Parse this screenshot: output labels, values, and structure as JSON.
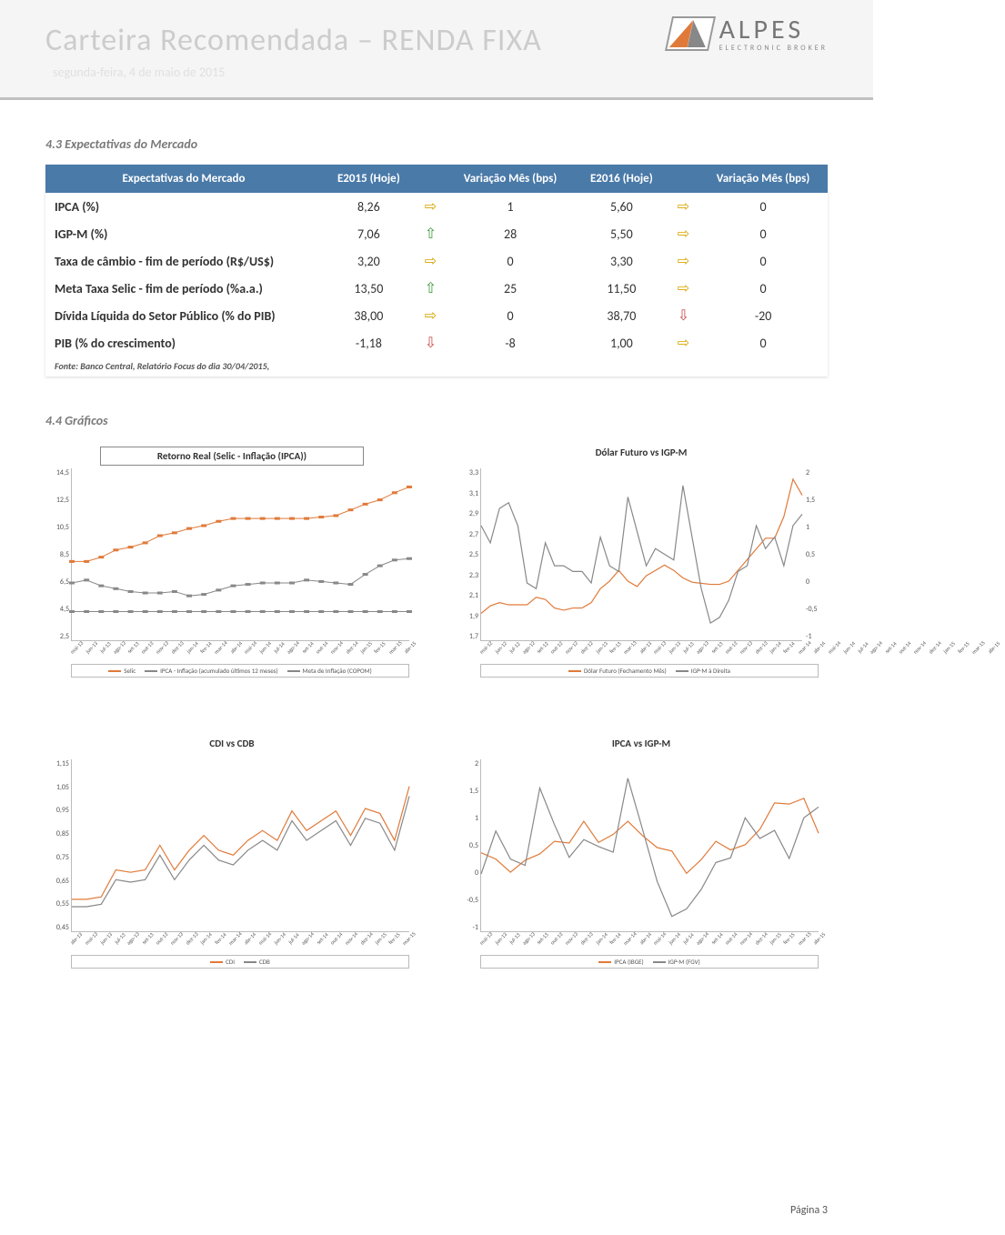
{
  "header": {
    "title": "Carteira Recomendada – RENDA FIXA",
    "date": "segunda-feira, 4 de maio de 2015",
    "logo_text": "ALPES",
    "logo_sub": "ELECTRONIC BROKER"
  },
  "section_43": {
    "title": "4.3 Expectativas do Mercado",
    "table": {
      "columns": [
        "Expectativas do Mercado",
        "E2015 (Hoje)",
        "",
        "Variação Mês (bps)",
        "E2016 (Hoje)",
        "",
        "Variação Mês (bps)"
      ],
      "rows": [
        {
          "label": "IPCA (%)",
          "e2015": "8,26",
          "a1": "right",
          "v1": "1",
          "e2016": "5,60",
          "a2": "right",
          "v2": "0"
        },
        {
          "label": "IGP-M (%)",
          "e2015": "7,06",
          "a1": "up",
          "v1": "28",
          "e2016": "5,50",
          "a2": "right",
          "v2": "0"
        },
        {
          "label": "Taxa de câmbio - fim de período (R$/US$)",
          "e2015": "3,20",
          "a1": "right",
          "v1": "0",
          "e2016": "3,30",
          "a2": "right",
          "v2": "0"
        },
        {
          "label": "Meta Taxa Selic - fim de período (%a.a.)",
          "e2015": "13,50",
          "a1": "up",
          "v1": "25",
          "e2016": "11,50",
          "a2": "right",
          "v2": "0"
        },
        {
          "label": "Dívida Líquida do Setor Público (% do PIB)",
          "e2015": "38,00",
          "a1": "right",
          "v1": "0",
          "e2016": "38,70",
          "a2": "down",
          "v2": "-20"
        },
        {
          "label": "PIB (% do crescimento)",
          "e2015": "-1,18",
          "a1": "down",
          "v1": "-8",
          "e2016": "1,00",
          "a2": "right",
          "v2": "0"
        }
      ],
      "footnote": "Fonte: Banco Central, Relatório Focus do dia 30/04/2015,"
    }
  },
  "section_44": {
    "title": "4.4 Gráficos"
  },
  "charts": {
    "c1": {
      "title": "Retorno Real  (Selic - Inflação (IPCA))",
      "ylabels": [
        "14,5",
        "12,5",
        "10,5",
        "8,5",
        "6,5",
        "4,5",
        "2,5"
      ],
      "xlabels": [
        "mai-13",
        "jun-13",
        "jul-13",
        "ago-13",
        "set-13",
        "out-13",
        "nov-13",
        "dez-13",
        "jan-14",
        "fev-14",
        "mar-14",
        "abr-14",
        "mai-14",
        "jun-14",
        "jul-14",
        "ago-14",
        "set-14",
        "out-14",
        "nov-14",
        "dez-14",
        "jan-15",
        "fev-15",
        "mar-15",
        "abr-15"
      ],
      "series": {
        "selic": {
          "color": "#e07a3a",
          "points": [
            8.0,
            8.0,
            8.3,
            8.8,
            9.0,
            9.3,
            9.8,
            10.0,
            10.3,
            10.5,
            10.8,
            11.0,
            11.0,
            11.0,
            11.0,
            11.0,
            11.0,
            11.1,
            11.2,
            11.6,
            12.0,
            12.3,
            12.8,
            13.2
          ]
        },
        "ipca": {
          "color": "#888888",
          "points": [
            6.5,
            6.7,
            6.3,
            6.1,
            5.9,
            5.8,
            5.8,
            5.9,
            5.6,
            5.7,
            6.0,
            6.3,
            6.4,
            6.5,
            6.5,
            6.5,
            6.7,
            6.6,
            6.5,
            6.4,
            7.1,
            7.7,
            8.1,
            8.2
          ]
        },
        "meta": {
          "color": "#888888",
          "points": [
            4.5,
            4.5,
            4.5,
            4.5,
            4.5,
            4.5,
            4.5,
            4.5,
            4.5,
            4.5,
            4.5,
            4.5,
            4.5,
            4.5,
            4.5,
            4.5,
            4.5,
            4.5,
            4.5,
            4.5,
            4.5,
            4.5,
            4.5,
            4.5
          ]
        }
      },
      "ylim": [
        2.5,
        14.5
      ],
      "legend": [
        "Selic",
        "IPCA - Inflação (acumulado últimos 12 meses)",
        "Meta de Inflação (COPOM)"
      ],
      "legend_colors": [
        "#e07a3a",
        "#888888",
        "#888888"
      ]
    },
    "c2": {
      "title": "Dólar Futuro vs IGP-M",
      "ylabels": [
        "3,3",
        "3,1",
        "2,9",
        "2,7",
        "2,5",
        "2,3",
        "2,1",
        "1,9",
        "1,7"
      ],
      "ylabels_r": [
        "2",
        "1,5",
        "1",
        "0,5",
        "0",
        "-0,5",
        "-1"
      ],
      "xlabels": [
        "mai-12",
        "jun-12",
        "jul-12",
        "ago-12",
        "set-12",
        "out-12",
        "nov-12",
        "dez-12",
        "jan-13",
        "fev-13",
        "mar-13",
        "abr-13",
        "mai-13",
        "jun-13",
        "jul-13",
        "ago-13",
        "set-13",
        "out-13",
        "nov-13",
        "dez-13",
        "jan-14",
        "fev-14",
        "mar-14",
        "abr-14",
        "mai-14",
        "jun-14",
        "jul-14",
        "ago-14",
        "set-14",
        "out-14",
        "nov-14",
        "dez-14",
        "jan-15",
        "fev-15",
        "mar-15",
        "abr-15"
      ],
      "series": {
        "dolar": {
          "color": "#e07a3a",
          "points": [
            1.95,
            2.02,
            2.05,
            2.03,
            2.03,
            2.03,
            2.1,
            2.08,
            2.0,
            1.98,
            2.0,
            2.0,
            2.05,
            2.18,
            2.25,
            2.35,
            2.25,
            2.2,
            2.3,
            2.35,
            2.4,
            2.35,
            2.28,
            2.24,
            2.23,
            2.22,
            2.22,
            2.25,
            2.35,
            2.45,
            2.55,
            2.65,
            2.65,
            2.85,
            3.2,
            3.05
          ]
        },
        "igpm": {
          "color": "#888888",
          "points": [
            1.0,
            0.7,
            1.3,
            1.4,
            1.0,
            0.0,
            -0.1,
            0.7,
            0.3,
            0.3,
            0.2,
            0.2,
            0.0,
            0.8,
            0.3,
            0.2,
            1.5,
            0.9,
            0.3,
            0.6,
            0.5,
            0.4,
            1.7,
            0.8,
            -0.1,
            -0.7,
            -0.6,
            -0.3,
            0.2,
            0.3,
            1.0,
            0.6,
            0.8,
            0.3,
            1.0,
            1.2
          ]
        }
      },
      "ylim": [
        1.7,
        3.3
      ],
      "ylim_r": [
        -1,
        2
      ],
      "legend": [
        "Dólar Futuro (Fechamento Mês)",
        "IGP-M à Direita"
      ],
      "legend_colors": [
        "#e07a3a",
        "#888888"
      ]
    },
    "c3": {
      "title": "CDI vs CDB",
      "ylabels": [
        "1,15",
        "1,05",
        "0,95",
        "0,85",
        "0,75",
        "0,65",
        "0,55",
        "0,45"
      ],
      "xlabels": [
        "abr-13",
        "mai-13",
        "jun-13",
        "jul-13",
        "ago-13",
        "set-13",
        "out-13",
        "nov-13",
        "dez-13",
        "jan-14",
        "fev-14",
        "mar-14",
        "abr-14",
        "mai-14",
        "jun-14",
        "jul-14",
        "ago-14",
        "set-14",
        "out-14",
        "nov-14",
        "dez-14",
        "jan-15",
        "fev-15",
        "mar-15"
      ],
      "series": {
        "cdi": {
          "color": "#e07a3a",
          "points": [
            0.58,
            0.58,
            0.59,
            0.7,
            0.69,
            0.7,
            0.8,
            0.7,
            0.78,
            0.84,
            0.78,
            0.76,
            0.82,
            0.86,
            0.82,
            0.94,
            0.86,
            0.9,
            0.94,
            0.84,
            0.95,
            0.93,
            0.82,
            1.04
          ]
        },
        "cdb": {
          "color": "#888888",
          "points": [
            0.55,
            0.55,
            0.56,
            0.66,
            0.65,
            0.66,
            0.76,
            0.66,
            0.74,
            0.8,
            0.74,
            0.72,
            0.78,
            0.82,
            0.78,
            0.9,
            0.82,
            0.86,
            0.9,
            0.8,
            0.91,
            0.89,
            0.78,
            1.0
          ]
        }
      },
      "ylim": [
        0.45,
        1.15
      ],
      "legend": [
        "CDI",
        "CDB"
      ],
      "legend_colors": [
        "#e07a3a",
        "#888888"
      ]
    },
    "c4": {
      "title": "IPCA vs IGP-M",
      "ylabels": [
        "2",
        "1,5",
        "1",
        "0,5",
        "0",
        "-0,5",
        "-1"
      ],
      "xlabels": [
        "mai-13",
        "jun-13",
        "jul-13",
        "ago-13",
        "set-13",
        "out-13",
        "nov-13",
        "dez-13",
        "jan-14",
        "fev-14",
        "mar-14",
        "abr-14",
        "mai-14",
        "jun-14",
        "jul-14",
        "ago-14",
        "set-14",
        "out-14",
        "nov-14",
        "dez-14",
        "jan-15",
        "fev-15",
        "mar-15",
        "abr-15"
      ],
      "series": {
        "ipca": {
          "color": "#e07a3a",
          "points": [
            0.37,
            0.26,
            0.03,
            0.24,
            0.35,
            0.57,
            0.54,
            0.92,
            0.55,
            0.69,
            0.92,
            0.67,
            0.46,
            0.4,
            0.01,
            0.25,
            0.57,
            0.42,
            0.51,
            0.78,
            1.24,
            1.22,
            1.32,
            0.71
          ]
        },
        "igpm": {
          "color": "#888888",
          "points": [
            0.0,
            0.75,
            0.26,
            0.15,
            1.5,
            0.86,
            0.29,
            0.6,
            0.48,
            0.38,
            1.67,
            0.78,
            -0.13,
            -0.74,
            -0.61,
            -0.27,
            0.2,
            0.28,
            0.98,
            0.62,
            0.76,
            0.27,
            0.98,
            1.17
          ]
        }
      },
      "ylim": [
        -1,
        2
      ],
      "legend": [
        "IPCA (IBGE)",
        "IGP-M (FGV)"
      ],
      "legend_colors": [
        "#e07a3a",
        "#888888"
      ]
    }
  },
  "footer": "Página 3"
}
